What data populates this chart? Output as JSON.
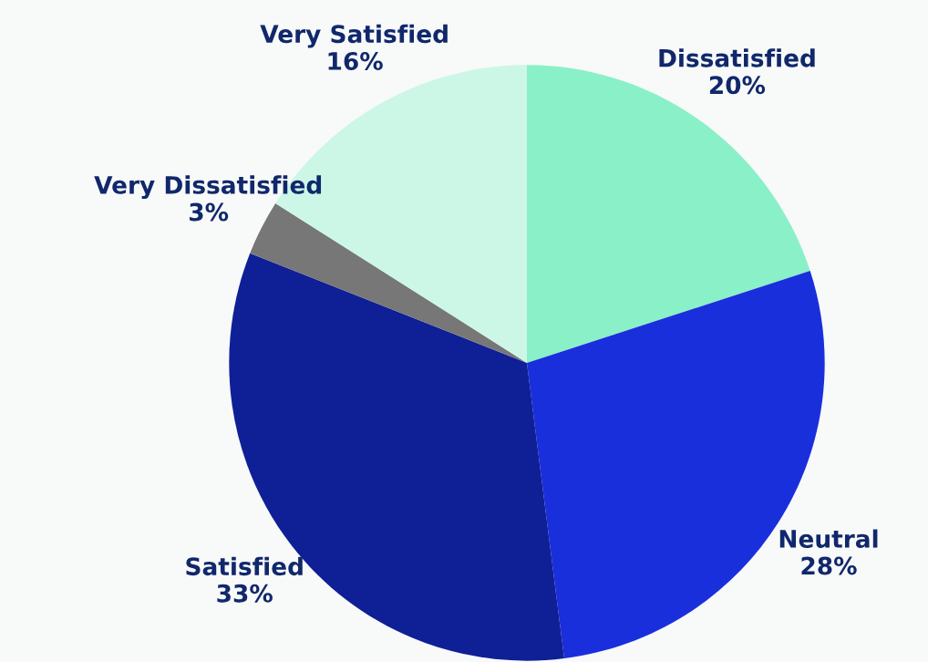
{
  "chart_data": {
    "type": "pie",
    "categories": [
      "Dissatisfied",
      "Neutral",
      "Satisfied",
      "Very Dissatisfied",
      "Very Satisfied"
    ],
    "values": [
      20,
      28,
      33,
      3,
      16
    ],
    "value_labels": [
      "20%",
      "28%",
      "33%",
      "3%",
      "16%"
    ],
    "colors": [
      "#8af0c8",
      "#1a2fdc",
      "#0f1f96",
      "#777777",
      "#ccf7e6"
    ],
    "legend": false
  }
}
